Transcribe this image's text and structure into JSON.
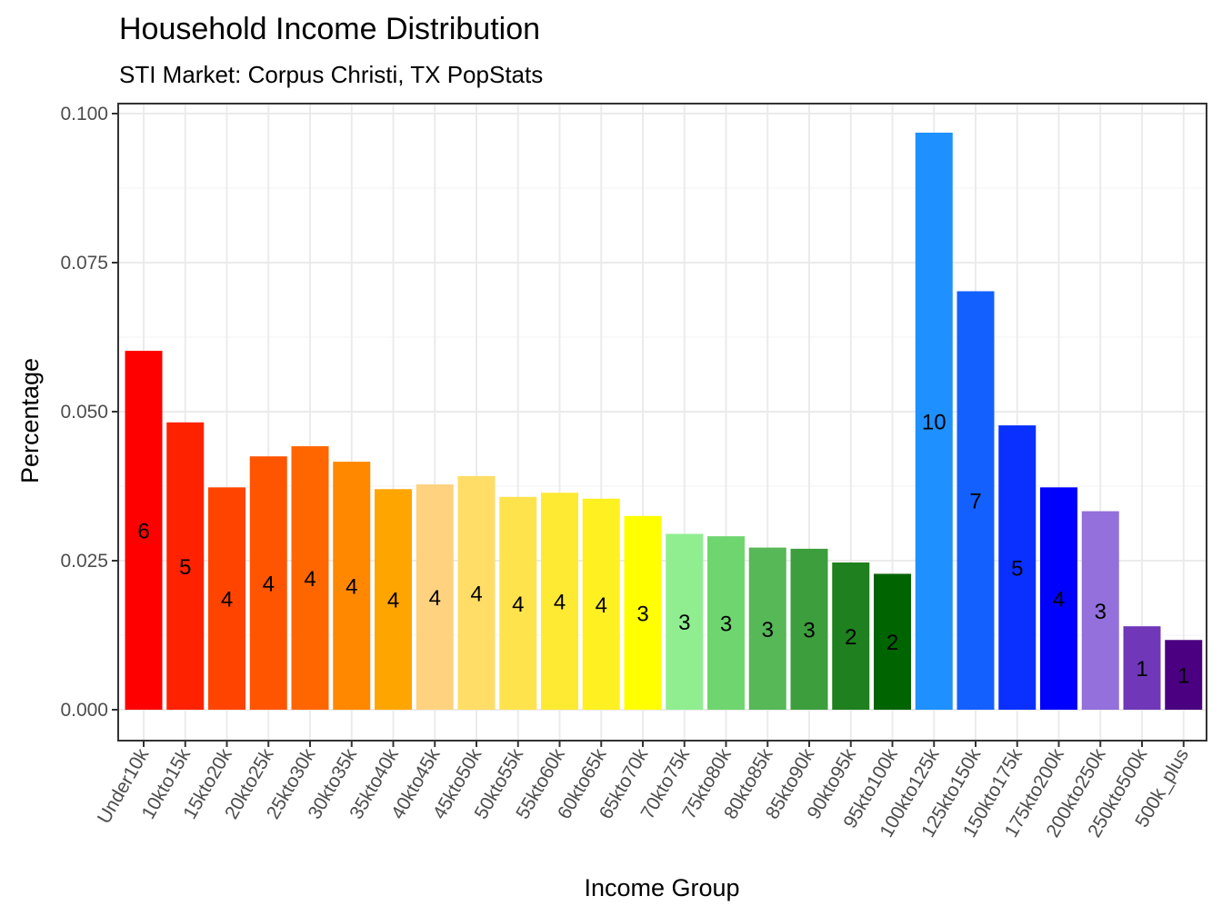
{
  "chart_data": {
    "type": "bar",
    "title": "Household Income Distribution",
    "subtitle": "STI Market: Corpus Christi, TX PopStats",
    "xlabel": "Income Group",
    "ylabel": "Percentage",
    "ylim": [
      0,
      0.1
    ],
    "yticks": [
      "0.000",
      "0.025",
      "0.050",
      "0.075",
      "0.100"
    ],
    "ytick_values": [
      0,
      0.025,
      0.05,
      0.075,
      0.1
    ],
    "grid": true,
    "legend": "none",
    "categories": [
      "Under10k",
      "10kto15k",
      "15kto20k",
      "20kto25k",
      "25kto30k",
      "30kto35k",
      "35kto40k",
      "40kto45k",
      "45kto50k",
      "50kto55k",
      "55kto60k",
      "60kto65k",
      "65kto70k",
      "70kto75k",
      "75kto80k",
      "80kto85k",
      "85kto90k",
      "90kto95k",
      "95kto100k",
      "100kto125k",
      "125kto150k",
      "150kto175k",
      "175kto200k",
      "200kto250k",
      "250kto500k",
      "500k_plus"
    ],
    "values": [
      0.0602,
      0.0482,
      0.0373,
      0.0425,
      0.0442,
      0.0416,
      0.037,
      0.0378,
      0.0392,
      0.0357,
      0.0364,
      0.0354,
      0.0325,
      0.0295,
      0.0291,
      0.0272,
      0.027,
      0.0247,
      0.0228,
      0.0968,
      0.0702,
      0.0477,
      0.0373,
      0.0333,
      0.014,
      0.0117
    ],
    "data_labels": [
      "6",
      "5",
      "4",
      "4",
      "4",
      "4",
      "4",
      "4",
      "4",
      "4",
      "4",
      "4",
      "3",
      "3",
      "3",
      "3",
      "3",
      "2",
      "2",
      "10",
      "7",
      "5",
      "4",
      "3",
      "1",
      "1"
    ],
    "colors": [
      "#FF0000",
      "#FF2200",
      "#FF4400",
      "#FF5500",
      "#FF6600",
      "#FF8800",
      "#FFA500",
      "#FFD27F",
      "#FFDD66",
      "#FFE34D",
      "#FFEA33",
      "#FFF021",
      "#FFFF00",
      "#90EE90",
      "#6FD66F",
      "#56B856",
      "#3D9E3D",
      "#1E801E",
      "#006400",
      "#1E90FF",
      "#1460FF",
      "#0A30FF",
      "#0000FF",
      "#9370DB",
      "#7038B8",
      "#4B0082"
    ]
  }
}
